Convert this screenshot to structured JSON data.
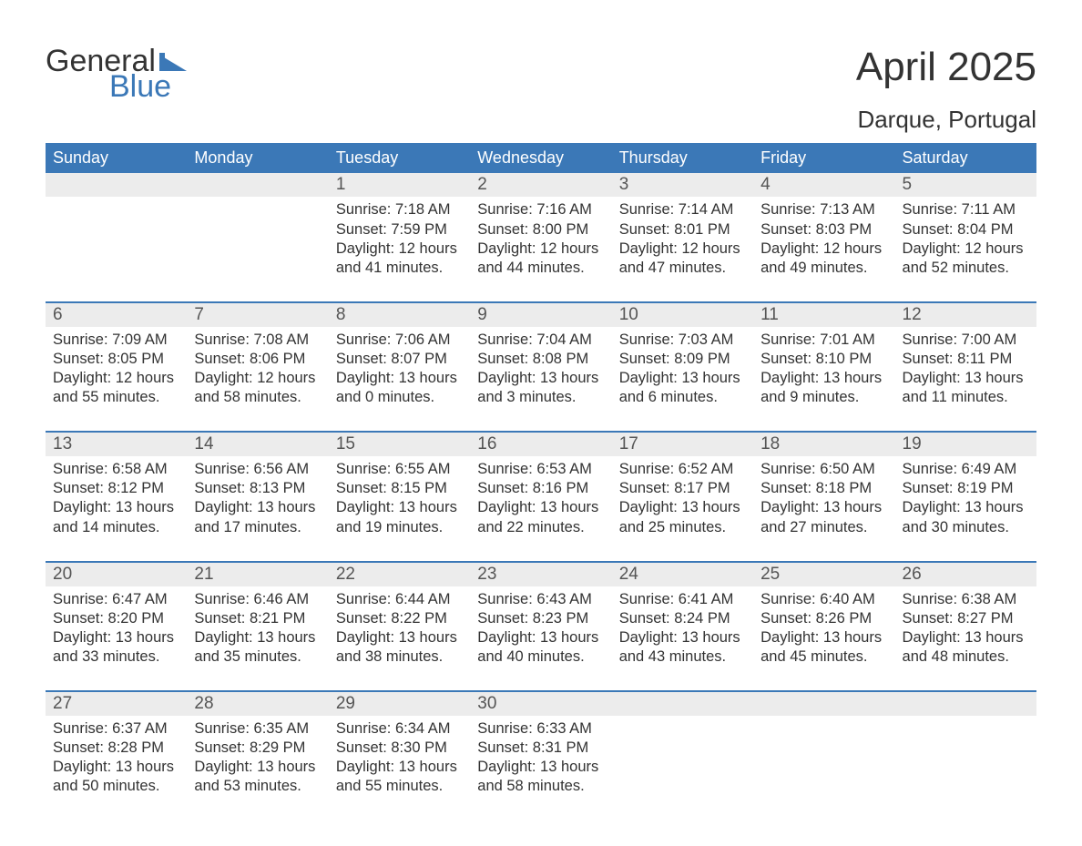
{
  "logo": {
    "text1": "General",
    "text2": "Blue",
    "flag_color": "#3b78b7"
  },
  "title": "April 2025",
  "location": "Darque, Portugal",
  "colors": {
    "header_bg": "#3b78b7",
    "band_bg": "#ececec",
    "text": "#333333"
  },
  "days_of_week": [
    "Sunday",
    "Monday",
    "Tuesday",
    "Wednesday",
    "Thursday",
    "Friday",
    "Saturday"
  ],
  "labels": {
    "sunrise": "Sunrise:",
    "sunset": "Sunset:",
    "daylight": "Daylight:"
  },
  "weeks": [
    [
      null,
      null,
      {
        "n": "1",
        "sunrise": "7:18 AM",
        "sunset": "7:59 PM",
        "day_h": "12",
        "day_m": "41"
      },
      {
        "n": "2",
        "sunrise": "7:16 AM",
        "sunset": "8:00 PM",
        "day_h": "12",
        "day_m": "44"
      },
      {
        "n": "3",
        "sunrise": "7:14 AM",
        "sunset": "8:01 PM",
        "day_h": "12",
        "day_m": "47"
      },
      {
        "n": "4",
        "sunrise": "7:13 AM",
        "sunset": "8:03 PM",
        "day_h": "12",
        "day_m": "49"
      },
      {
        "n": "5",
        "sunrise": "7:11 AM",
        "sunset": "8:04 PM",
        "day_h": "12",
        "day_m": "52"
      }
    ],
    [
      {
        "n": "6",
        "sunrise": "7:09 AM",
        "sunset": "8:05 PM",
        "day_h": "12",
        "day_m": "55"
      },
      {
        "n": "7",
        "sunrise": "7:08 AM",
        "sunset": "8:06 PM",
        "day_h": "12",
        "day_m": "58"
      },
      {
        "n": "8",
        "sunrise": "7:06 AM",
        "sunset": "8:07 PM",
        "day_h": "13",
        "day_m": "0"
      },
      {
        "n": "9",
        "sunrise": "7:04 AM",
        "sunset": "8:08 PM",
        "day_h": "13",
        "day_m": "3"
      },
      {
        "n": "10",
        "sunrise": "7:03 AM",
        "sunset": "8:09 PM",
        "day_h": "13",
        "day_m": "6"
      },
      {
        "n": "11",
        "sunrise": "7:01 AM",
        "sunset": "8:10 PM",
        "day_h": "13",
        "day_m": "9"
      },
      {
        "n": "12",
        "sunrise": "7:00 AM",
        "sunset": "8:11 PM",
        "day_h": "13",
        "day_m": "11"
      }
    ],
    [
      {
        "n": "13",
        "sunrise": "6:58 AM",
        "sunset": "8:12 PM",
        "day_h": "13",
        "day_m": "14"
      },
      {
        "n": "14",
        "sunrise": "6:56 AM",
        "sunset": "8:13 PM",
        "day_h": "13",
        "day_m": "17"
      },
      {
        "n": "15",
        "sunrise": "6:55 AM",
        "sunset": "8:15 PM",
        "day_h": "13",
        "day_m": "19"
      },
      {
        "n": "16",
        "sunrise": "6:53 AM",
        "sunset": "8:16 PM",
        "day_h": "13",
        "day_m": "22"
      },
      {
        "n": "17",
        "sunrise": "6:52 AM",
        "sunset": "8:17 PM",
        "day_h": "13",
        "day_m": "25"
      },
      {
        "n": "18",
        "sunrise": "6:50 AM",
        "sunset": "8:18 PM",
        "day_h": "13",
        "day_m": "27"
      },
      {
        "n": "19",
        "sunrise": "6:49 AM",
        "sunset": "8:19 PM",
        "day_h": "13",
        "day_m": "30"
      }
    ],
    [
      {
        "n": "20",
        "sunrise": "6:47 AM",
        "sunset": "8:20 PM",
        "day_h": "13",
        "day_m": "33"
      },
      {
        "n": "21",
        "sunrise": "6:46 AM",
        "sunset": "8:21 PM",
        "day_h": "13",
        "day_m": "35"
      },
      {
        "n": "22",
        "sunrise": "6:44 AM",
        "sunset": "8:22 PM",
        "day_h": "13",
        "day_m": "38"
      },
      {
        "n": "23",
        "sunrise": "6:43 AM",
        "sunset": "8:23 PM",
        "day_h": "13",
        "day_m": "40"
      },
      {
        "n": "24",
        "sunrise": "6:41 AM",
        "sunset": "8:24 PM",
        "day_h": "13",
        "day_m": "43"
      },
      {
        "n": "25",
        "sunrise": "6:40 AM",
        "sunset": "8:26 PM",
        "day_h": "13",
        "day_m": "45"
      },
      {
        "n": "26",
        "sunrise": "6:38 AM",
        "sunset": "8:27 PM",
        "day_h": "13",
        "day_m": "48"
      }
    ],
    [
      {
        "n": "27",
        "sunrise": "6:37 AM",
        "sunset": "8:28 PM",
        "day_h": "13",
        "day_m": "50"
      },
      {
        "n": "28",
        "sunrise": "6:35 AM",
        "sunset": "8:29 PM",
        "day_h": "13",
        "day_m": "53"
      },
      {
        "n": "29",
        "sunrise": "6:34 AM",
        "sunset": "8:30 PM",
        "day_h": "13",
        "day_m": "55"
      },
      {
        "n": "30",
        "sunrise": "6:33 AM",
        "sunset": "8:31 PM",
        "day_h": "13",
        "day_m": "58"
      },
      null,
      null,
      null
    ]
  ]
}
